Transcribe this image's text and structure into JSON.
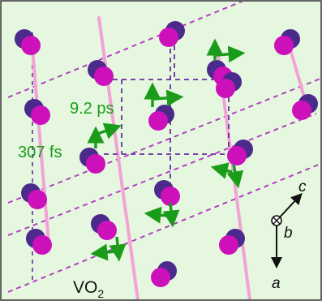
{
  "figure": {
    "background_color": "#e6f7df",
    "border_color": "#333333",
    "colors": {
      "vanadium": "#cc11bb",
      "oxygen": "#4b2a8c",
      "chain": "#f2a3d6",
      "lattice_line": "#b33fc3",
      "cell": "#6a2aa0",
      "arrow": "#1a9c1a",
      "label_green": "#1a9c1a",
      "axis": "#111111"
    },
    "labels": {
      "time_slow": "9.2 ps",
      "time_fast": "307 fs",
      "compound_base": "VO",
      "compound_sub": "2"
    },
    "axes": {
      "c": "c",
      "b": "b",
      "a": "a"
    }
  }
}
